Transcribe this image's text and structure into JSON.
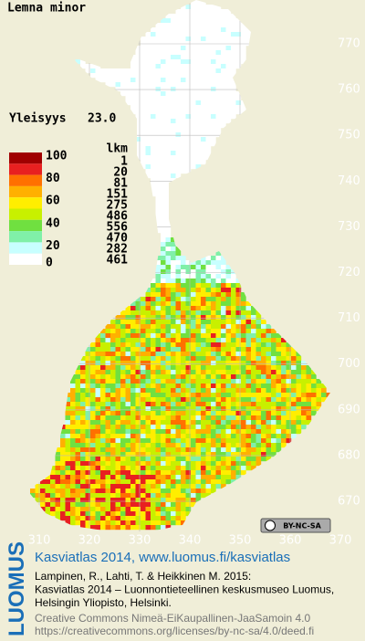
{
  "title": "Lemna minor",
  "frequency": {
    "label": "Yleisyys",
    "value": "23.0"
  },
  "legend": {
    "count_header": "lkm",
    "classes": [
      {
        "color": "#a00000",
        "count": 1
      },
      {
        "color": "#e82020",
        "count": 20
      },
      {
        "color": "#ff7000",
        "count": 81
      },
      {
        "color": "#ffb000",
        "count": 151
      },
      {
        "color": "#ffee00",
        "count": 275
      },
      {
        "color": "#c8f000",
        "count": 486
      },
      {
        "color": "#70e040",
        "count": 556
      },
      {
        "color": "#80f0a8",
        "count": 470
      },
      {
        "color": "#c8ffff",
        "count": 282
      },
      {
        "color": "#ffffff",
        "count": 461
      }
    ],
    "scale_labels": [
      "100",
      "80",
      "60",
      "40",
      "20",
      "0"
    ]
  },
  "x_labels": [
    310,
    320,
    330,
    340,
    350,
    360,
    370
  ],
  "y_labels": [
    770,
    760,
    750,
    740,
    730,
    720,
    710,
    700,
    690,
    680,
    670
  ],
  "badge": "BY-NC-SA",
  "footer": {
    "logo": "LUOMUS",
    "link": "Kasviatlas 2014, www.luomus.fi/kasviatlas",
    "citation": [
      "Lampinen, R., Lahti, T. & Heikkinen M. 2015:",
      "Kasviatlas 2014 – Luonnontieteellinen keskusmuseo Luomus,",
      "Helsingin Yliopisto, Helsinki."
    ],
    "license": [
      "Creative Commons Nimeä-EiKaupallinen-JaaSamoin 4.0",
      "https://creativecommons.org/licenses/by-nc-sa/4.0/deed.fi"
    ]
  }
}
